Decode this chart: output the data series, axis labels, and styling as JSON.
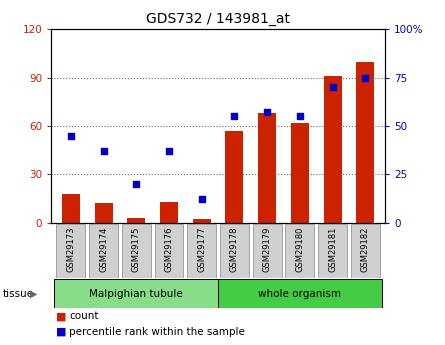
{
  "title": "GDS732 / 143981_at",
  "categories": [
    "GSM29173",
    "GSM29174",
    "GSM29175",
    "GSM29176",
    "GSM29177",
    "GSM29178",
    "GSM29179",
    "GSM29180",
    "GSM29181",
    "GSM29182"
  ],
  "counts": [
    18,
    12,
    3,
    13,
    2,
    57,
    68,
    62,
    91,
    100
  ],
  "percentiles": [
    45,
    37,
    20,
    37,
    12,
    55,
    57,
    55,
    70,
    75
  ],
  "bar_color": "#cc2200",
  "dot_color": "#0000cc",
  "left_ylim": [
    0,
    120
  ],
  "right_ylim": [
    0,
    100
  ],
  "left_yticks": [
    0,
    30,
    60,
    90,
    120
  ],
  "right_yticks": [
    0,
    25,
    50,
    75,
    100
  ],
  "right_yticklabels": [
    "0",
    "25",
    "50",
    "75",
    "100%"
  ],
  "tissue_groups": [
    {
      "label": "Malpighian tubule",
      "indices": [
        0,
        1,
        2,
        3,
        4
      ],
      "color": "#88dd88"
    },
    {
      "label": "whole organism",
      "indices": [
        5,
        6,
        7,
        8,
        9
      ],
      "color": "#44cc44"
    }
  ],
  "tissue_label": "tissue",
  "legend_count_label": "count",
  "legend_percentile_label": "percentile rank within the sample",
  "bg_color": "#ffffff",
  "tick_label_color_left": "#cc2200",
  "tick_label_color_right": "#0000cc",
  "grid_linestyle": ":"
}
